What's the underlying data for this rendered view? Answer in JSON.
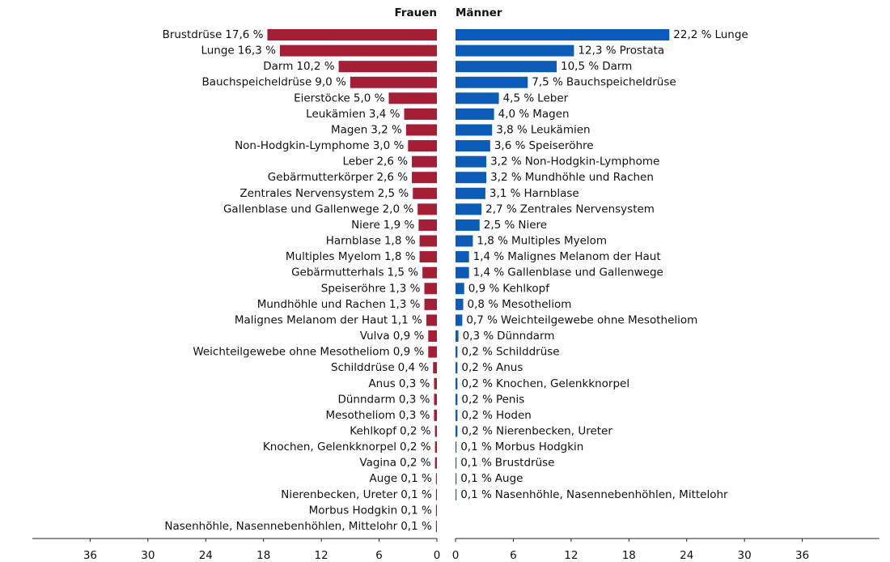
{
  "chart_data": [
    {
      "type": "bar",
      "orientation": "horizontal",
      "x_reversed": true,
      "title": "Frauen",
      "color": "#a51e36",
      "categories": [
        "Brustdrüse",
        "Lunge",
        "Darm",
        "Bauchspeicheldrüse",
        "Eierstöcke",
        "Leukämien",
        "Magen",
        "Non-Hodgkin-Lymphome",
        "Leber",
        "Gebärmutterkörper",
        "Zentrales Nervensystem",
        "Gallenblase und Gallenwege",
        "Niere",
        "Harnblase",
        "Multiples Myelom",
        "Gebärmutterhals",
        "Speiseröhre",
        "Mundhöhle und Rachen",
        "Malignes Melanom der Haut",
        "Vulva",
        "Weichteilgewebe ohne Mesotheliom",
        "Schilddrüse",
        "Anus",
        "Dünndarm",
        "Mesotheliom",
        "Kehlkopf",
        "Knochen, Gelenkknorpel",
        "Vagina",
        "Auge",
        "Nierenbecken, Ureter",
        "Morbus Hodgkin",
        "Nasenhöhle, Nasennebenhöhlen, Mittelohr"
      ],
      "values": [
        17.6,
        16.3,
        10.2,
        9.0,
        5.0,
        3.4,
        3.2,
        3.0,
        2.6,
        2.6,
        2.5,
        2.0,
        1.9,
        1.8,
        1.8,
        1.5,
        1.3,
        1.3,
        1.1,
        0.9,
        0.9,
        0.4,
        0.3,
        0.3,
        0.3,
        0.2,
        0.2,
        0.2,
        0.1,
        0.1,
        0.1,
        0.1
      ],
      "value_labels": [
        "17,6 %",
        "16,3 %",
        "10,2 %",
        "9,0 %",
        "5,0 %",
        "3,4 %",
        "3,2 %",
        "3,0 %",
        "2,6 %",
        "2,6 %",
        "2,5 %",
        "2,0 %",
        "1,9 %",
        "1,8 %",
        "1,8 %",
        "1,5 %",
        "1,3 %",
        "1,3 %",
        "1,1 %",
        "0,9 %",
        "0,9 %",
        "0,4 %",
        "0,3 %",
        "0,3 %",
        "0,3 %",
        "0,2 %",
        "0,2 %",
        "0,2 %",
        "0,1 %",
        "0,1 %",
        "0,1 %",
        "0,1 %"
      ],
      "xlim": [
        0,
        42
      ],
      "xticks": [
        0,
        6,
        12,
        18,
        24,
        30,
        36
      ]
    },
    {
      "type": "bar",
      "orientation": "horizontal",
      "x_reversed": false,
      "title": "Männer",
      "color": "#0b5cb8",
      "categories": [
        "Lunge",
        "Prostata",
        "Darm",
        "Bauchspeicheldrüse",
        "Leber",
        "Magen",
        "Leukämien",
        "Speiseröhre",
        "Non-Hodgkin-Lymphome",
        "Mundhöhle und Rachen",
        "Harnblase",
        "Zentrales Nervensystem",
        "Niere",
        "Multiples Myelom",
        "Malignes Melanom der Haut",
        "Gallenblase und Gallenwege",
        "Kehlkopf",
        "Mesotheliom",
        "Weichteilgewebe ohne Mesotheliom",
        "Dünndarm",
        "Schilddrüse",
        "Anus",
        "Knochen, Gelenkknorpel",
        "Penis",
        "Hoden",
        "Nierenbecken, Ureter",
        "Morbus Hodgkin",
        "Brustdrüse",
        "Auge",
        "Nasenhöhle, Nasennebenhöhlen, Mittelohr"
      ],
      "values": [
        22.2,
        12.3,
        10.5,
        7.5,
        4.5,
        4.0,
        3.8,
        3.6,
        3.2,
        3.2,
        3.1,
        2.7,
        2.5,
        1.8,
        1.4,
        1.4,
        0.9,
        0.8,
        0.7,
        0.3,
        0.2,
        0.2,
        0.2,
        0.2,
        0.2,
        0.2,
        0.1,
        0.1,
        0.1,
        0.1
      ],
      "value_labels": [
        "22,2 %",
        "12,3 %",
        "10,5 %",
        "7,5 %",
        "4,5 %",
        "4,0 %",
        "3,8 %",
        "3,6 %",
        "3,2 %",
        "3,2 %",
        "3,1 %",
        "2,7 %",
        "2,5 %",
        "1,8 %",
        "1,4 %",
        "1,4 %",
        "0,9 %",
        "0,8 %",
        "0,7 %",
        "0,3 %",
        "0,2 %",
        "0,2 %",
        "0,2 %",
        "0,2 %",
        "0,2 %",
        "0,2 %",
        "0,1 %",
        "0,1 %",
        "0,1 %",
        "0,1 %"
      ],
      "xlim": [
        0,
        44
      ],
      "xticks": [
        0,
        6,
        12,
        18,
        24,
        30,
        36
      ]
    }
  ]
}
